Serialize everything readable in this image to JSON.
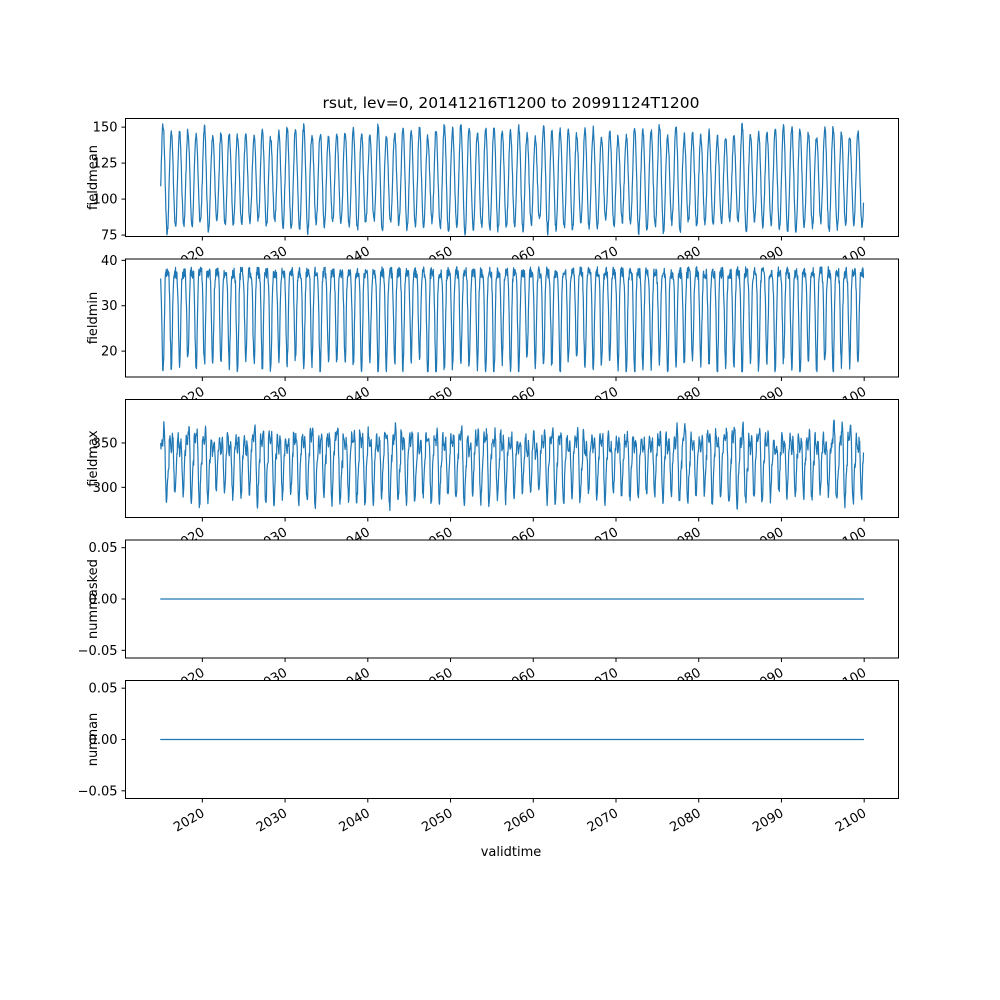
{
  "figure": {
    "background": "#ffffff"
  },
  "chart_data": {
    "type": "line",
    "title": "rsut, lev=0, 20141216T1200 to 20991124T1200",
    "xlabel": "validtime",
    "line_color": "#1f77b4",
    "legend": "none",
    "grid": false,
    "x": {
      "start": 2014.96,
      "end": 2099.9,
      "xlim": [
        2010.71,
        2104.15
      ],
      "ticks": [
        2020,
        2030,
        2040,
        2050,
        2060,
        2070,
        2080,
        2090,
        2100
      ],
      "samples_per_year": 24,
      "tick_rotation_deg": 30
    },
    "subplots": [
      {
        "ylabel": "fieldmean",
        "yticks": [
          75,
          100,
          125,
          150
        ],
        "ylim": [
          74,
          156
        ],
        "signal": {
          "kind": "sine",
          "mean": 114,
          "amplitude": 33,
          "amplitude_jitter": 5,
          "noise": 2.5,
          "min": 75,
          "max": 155,
          "period_years": 1,
          "seed": 7
        }
      },
      {
        "ylabel": "fieldmin",
        "yticks": [
          20,
          30,
          40
        ],
        "ylim": [
          14.3,
          40.3
        ],
        "signal": {
          "kind": "dip",
          "base": 37.3,
          "depth": 21,
          "depth_jitter": 2,
          "power": 3,
          "noise": 1.3,
          "min": 15.5,
          "max": 39.8,
          "period_years": 1,
          "seed": 108
        }
      },
      {
        "ylabel": "fieldmax",
        "yticks": [
          300,
          350
        ],
        "ylim": [
          266,
          399
        ],
        "signal": {
          "kind": "mixed",
          "mean": 331,
          "amplitude": 30,
          "amplitude_jitter": 10,
          "second_amplitude": 16,
          "noise": 6,
          "min": 272,
          "max": 394,
          "period_years": 1,
          "seed": 209
        }
      },
      {
        "ylabel": "nummasked",
        "yticks": [
          -0.05,
          0.0,
          0.05
        ],
        "ylim": [
          -0.0575,
          0.0575
        ],
        "signal": {
          "kind": "constant",
          "value": 0,
          "seed": 310
        }
      },
      {
        "ylabel": "numnan",
        "yticks": [
          -0.05,
          0.0,
          0.05
        ],
        "ylim": [
          -0.0575,
          0.0575
        ],
        "signal": {
          "kind": "constant",
          "value": 0,
          "seed": 411
        }
      }
    ]
  }
}
